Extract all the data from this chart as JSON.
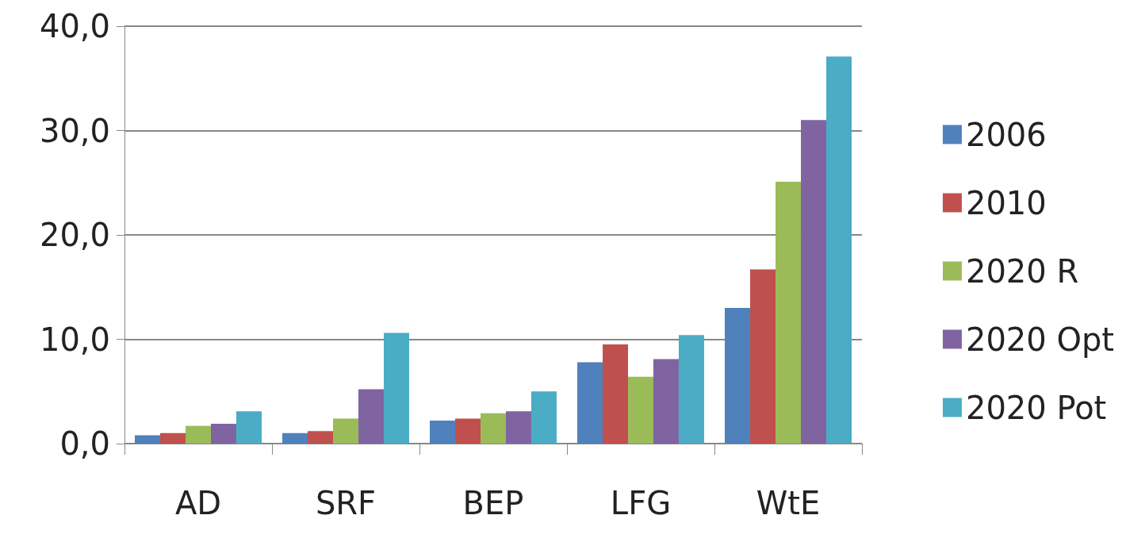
{
  "chart_data": {
    "type": "bar",
    "categories": [
      "AD",
      "SRF",
      "BEP",
      "LFG",
      "WtE"
    ],
    "series": [
      {
        "name": "2006",
        "color": "#4f81bd",
        "values": [
          0.8,
          1.0,
          2.2,
          7.8,
          13.0
        ]
      },
      {
        "name": "2010",
        "color": "#c0504d",
        "values": [
          1.0,
          1.2,
          2.4,
          9.5,
          16.7
        ]
      },
      {
        "name": "2020 R",
        "color": "#9bbb59",
        "values": [
          1.7,
          2.4,
          2.9,
          6.4,
          25.1
        ]
      },
      {
        "name": "2020 Opt",
        "color": "#8064a2",
        "values": [
          1.9,
          5.2,
          3.1,
          8.1,
          31.0
        ]
      },
      {
        "name": "2020 Pot",
        "color": "#4bacc6",
        "values": [
          3.1,
          10.6,
          5.0,
          10.4,
          37.1
        ]
      }
    ],
    "ylim": [
      0,
      40
    ],
    "yticks": [
      {
        "value": 0,
        "label": "0,0"
      },
      {
        "value": 10,
        "label": "10,0"
      },
      {
        "value": 20,
        "label": "20,0"
      },
      {
        "value": 30,
        "label": "30,0"
      },
      {
        "value": 40,
        "label": "40,0"
      }
    ],
    "grid": "y",
    "legend": "right"
  }
}
